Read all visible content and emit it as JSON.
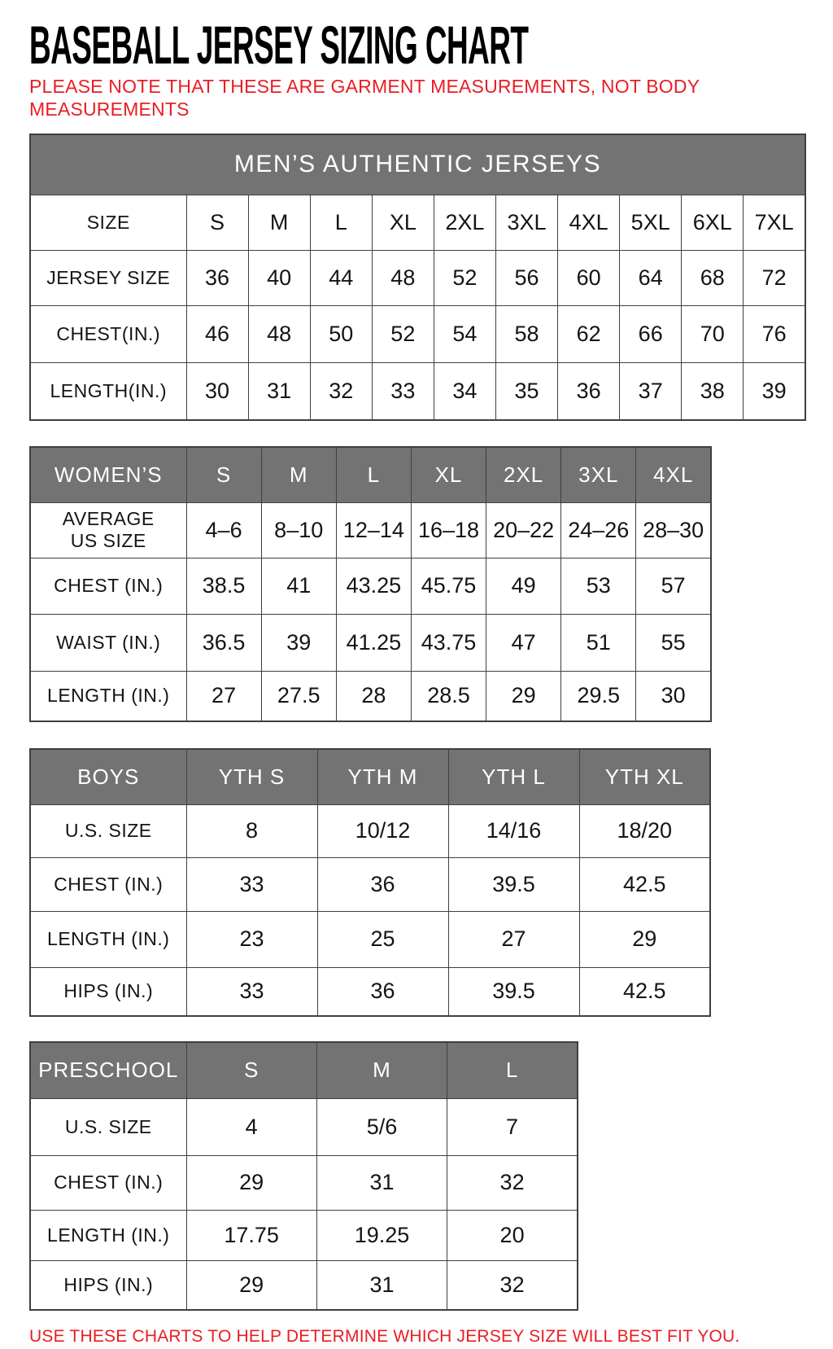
{
  "page": {
    "title": "BASEBALL JERSEY SIZING CHART",
    "note_line1": "PLEASE NOTE THAT THESE ARE GARMENT MEASUREMENTS, NOT BODY",
    "note_line2": "MEASUREMENTS",
    "footer": "USE THESE CHARTS TO HELP DETERMINE WHICH JERSEY SIZE WILL BEST FIT YOU.",
    "colors": {
      "accent_red": "#e91d22",
      "header_gray": "#737373",
      "border": "#3f3f3f",
      "header_text": "#ffffff"
    }
  },
  "tables": {
    "mens": {
      "banner": "MEN’S AUTHENTIC JERSEYS",
      "rows": [
        {
          "label": "SIZE",
          "values": [
            "S",
            "M",
            "L",
            "XL",
            "2XL",
            "3XL",
            "4XL",
            "5XL",
            "6XL",
            "7XL"
          ]
        },
        {
          "label": "JERSEY SIZE",
          "values": [
            "36",
            "40",
            "44",
            "48",
            "52",
            "56",
            "60",
            "64",
            "68",
            "72"
          ]
        },
        {
          "label": "CHEST(IN.)",
          "values": [
            "46",
            "48",
            "50",
            "52",
            "54",
            "58",
            "62",
            "66",
            "70",
            "76"
          ]
        },
        {
          "label": "LENGTH(IN.)",
          "values": [
            "30",
            "31",
            "32",
            "33",
            "34",
            "35",
            "36",
            "37",
            "38",
            "39"
          ]
        }
      ]
    },
    "womens": {
      "header": [
        "WOMEN’S",
        "S",
        "M",
        "L",
        "XL",
        "2XL",
        "3XL",
        "4XL"
      ],
      "rows": [
        {
          "label": "AVERAGE\nUS SIZE",
          "values": [
            "4–6",
            "8–10",
            "12–14",
            "16–18",
            "20–22",
            "24–26",
            "28–30"
          ]
        },
        {
          "label": "CHEST (IN.)",
          "values": [
            "38.5",
            "41",
            "43.25",
            "45.75",
            "49",
            "53",
            "57"
          ]
        },
        {
          "label": "WAIST (IN.)",
          "values": [
            "36.5",
            "39",
            "41.25",
            "43.75",
            "47",
            "51",
            "55"
          ]
        },
        {
          "label": "LENGTH (IN.)",
          "values": [
            "27",
            "27.5",
            "28",
            "28.5",
            "29",
            "29.5",
            "30"
          ]
        }
      ]
    },
    "boys": {
      "header": [
        "BOYS",
        "YTH S",
        "YTH M",
        "YTH L",
        "YTH XL"
      ],
      "rows": [
        {
          "label": "U.S. SIZE",
          "values": [
            "8",
            "10/12",
            "14/16",
            "18/20"
          ]
        },
        {
          "label": "CHEST (IN.)",
          "values": [
            "33",
            "36",
            "39.5",
            "42.5"
          ]
        },
        {
          "label": "LENGTH (IN.)",
          "values": [
            "23",
            "25",
            "27",
            "29"
          ]
        },
        {
          "label": "HIPS (IN.)",
          "values": [
            "33",
            "36",
            "39.5",
            "42.5"
          ]
        }
      ]
    },
    "preschool": {
      "header": [
        "PRESCHOOL",
        "S",
        "M",
        "L"
      ],
      "rows": [
        {
          "label": "U.S. SIZE",
          "values": [
            "4",
            "5/6",
            "7"
          ]
        },
        {
          "label": "CHEST (IN.)",
          "values": [
            "29",
            "31",
            "32"
          ]
        },
        {
          "label": "LENGTH (IN.)",
          "values": [
            "17.75",
            "19.25",
            "20"
          ]
        },
        {
          "label": "HIPS (IN.)",
          "values": [
            "29",
            "31",
            "32"
          ]
        }
      ]
    }
  }
}
